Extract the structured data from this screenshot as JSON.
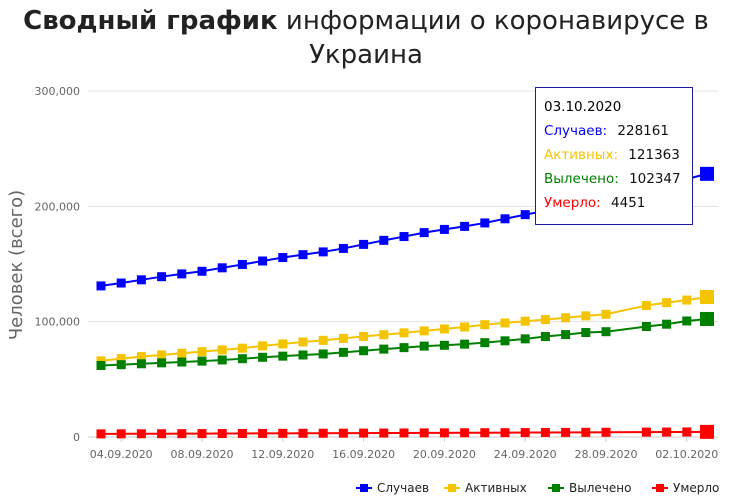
{
  "title": {
    "bold": "Сводный график",
    "rest": " информации о коронавирусе в Украина"
  },
  "tooltip": {
    "date": "03.10.2020",
    "rows": [
      {
        "label": "Случаев:",
        "value": "228161",
        "color": "#0000ff"
      },
      {
        "label": "Активных:",
        "value": "121363",
        "color": "#f5c400"
      },
      {
        "label": "Вылечено:",
        "value": "102347",
        "color": "#008000"
      },
      {
        "label": "Умерло:",
        "value": "4451",
        "color": "#ff0000"
      }
    ]
  },
  "chart_data": {
    "type": "line",
    "ylabel": "Человек (всего)",
    "ylim": [
      0,
      300000
    ],
    "yticks": [
      "0",
      "100,000",
      "200,000",
      "300,000"
    ],
    "xticks": [
      "04.09.2020",
      "08.09.2020",
      "12.09.2020",
      "16.09.2020",
      "20.09.2020",
      "24.09.2020",
      "28.09.2020",
      "02.10.2020"
    ],
    "grid": true,
    "legend_position": "bottom-right",
    "x": [
      "03.09.2020",
      "04.09.2020",
      "05.09.2020",
      "06.09.2020",
      "07.09.2020",
      "08.09.2020",
      "09.09.2020",
      "10.09.2020",
      "11.09.2020",
      "12.09.2020",
      "13.09.2020",
      "14.09.2020",
      "15.09.2020",
      "16.09.2020",
      "17.09.2020",
      "18.09.2020",
      "19.09.2020",
      "20.09.2020",
      "21.09.2020",
      "22.09.2020",
      "23.09.2020",
      "24.09.2020",
      "25.09.2020",
      "26.09.2020",
      "27.09.2020",
      "28.09.2020",
      "30.09.2020",
      "01.10.2020",
      "02.10.2020",
      "03.10.2020"
    ],
    "series": [
      {
        "name": "Случаев",
        "color": "#0000ff",
        "values": [
          131000,
          133500,
          136300,
          139000,
          141400,
          143700,
          146700,
          149600,
          152600,
          155600,
          158100,
          160500,
          163500,
          167000,
          170500,
          173800,
          177200,
          180000,
          182600,
          185600,
          189200,
          192800,
          196000,
          199700,
          203400,
          206000,
          214000,
          219000,
          223700,
          228161
        ]
      },
      {
        "name": "Активных",
        "color": "#f5c400",
        "values": [
          66000,
          68000,
          69700,
          71200,
          72600,
          74000,
          75500,
          77000,
          79000,
          80700,
          82400,
          83800,
          85500,
          87200,
          88700,
          90300,
          92000,
          93700,
          95400,
          97400,
          98900,
          100400,
          101800,
          103400,
          105000,
          106400,
          114000,
          116500,
          118700,
          121363
        ]
      },
      {
        "name": "Вылечено",
        "color": "#008000",
        "values": [
          62000,
          62700,
          63500,
          64300,
          65000,
          65800,
          66800,
          67900,
          69100,
          70100,
          71100,
          72000,
          73400,
          74800,
          76200,
          77500,
          78800,
          79500,
          80500,
          81800,
          83400,
          85100,
          87100,
          88800,
          90600,
          91300,
          95800,
          97800,
          100600,
          102347
        ]
      },
      {
        "name": "Умерло",
        "color": "#ff0000",
        "values": [
          2700,
          2760,
          2800,
          2850,
          2900,
          2950,
          3000,
          3060,
          3120,
          3170,
          3220,
          3270,
          3320,
          3380,
          3440,
          3500,
          3560,
          3620,
          3670,
          3720,
          3780,
          3850,
          3920,
          3980,
          4050,
          4100,
          4250,
          4300,
          4380,
          4451
        ]
      }
    ]
  }
}
